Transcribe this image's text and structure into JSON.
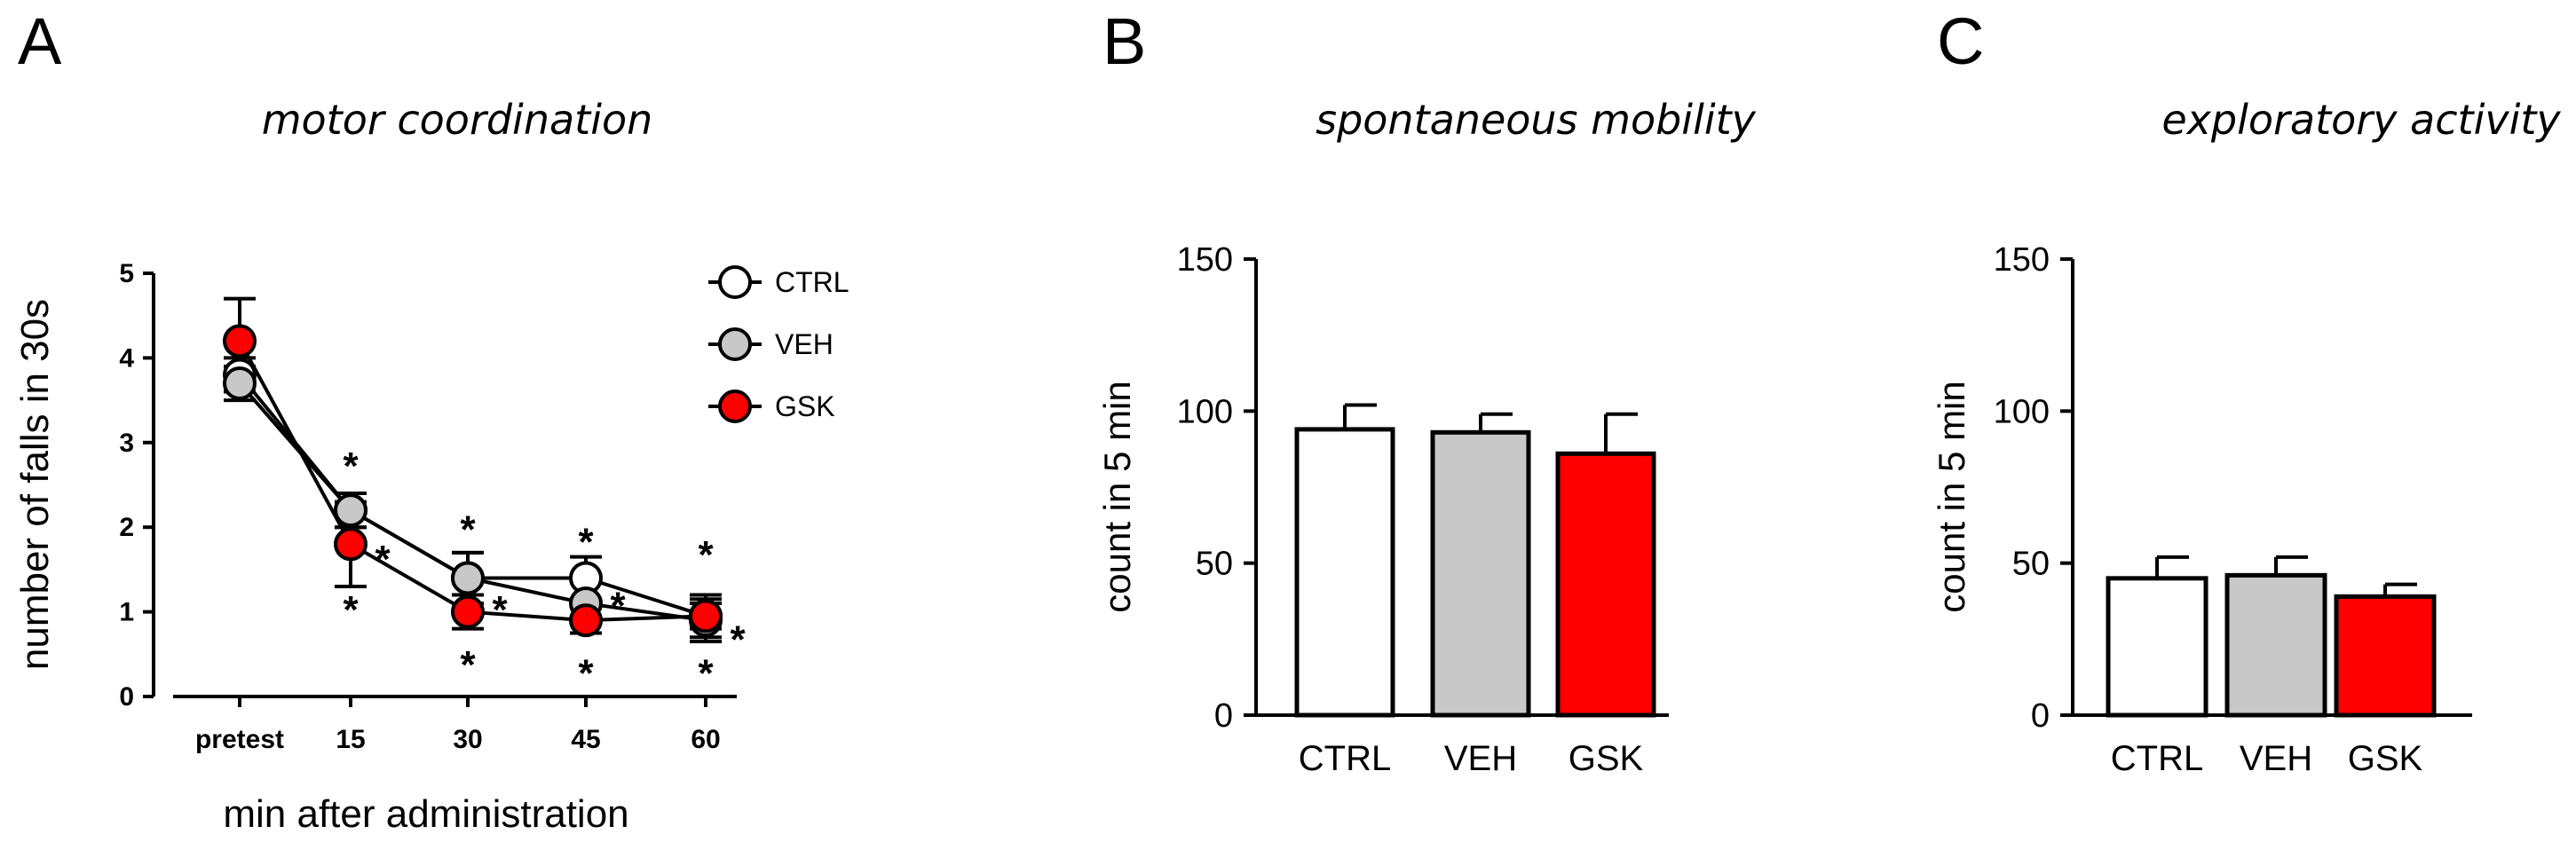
{
  "figure": {
    "panels": [
      {
        "letter": "A",
        "title": "motor coordination"
      },
      {
        "letter": "B",
        "title": "spontaneous mobility"
      },
      {
        "letter": "C",
        "title": "exploratory activity"
      }
    ]
  },
  "colors": {
    "ctrl": "#ffffff",
    "veh": "#c8c8c8",
    "gsk": "#ff0000",
    "stroke": "#000000"
  },
  "chart_data": [
    {
      "type": "line",
      "title": "motor coordination",
      "xlabel": "min after administration",
      "ylabel": "number of falls in 30s",
      "categories": [
        "pretest",
        "15",
        "30",
        "45",
        "60"
      ],
      "ylim": [
        0,
        5
      ],
      "yticks": [
        0,
        1,
        2,
        3,
        4,
        5
      ],
      "legend_position": "top-right",
      "series": [
        {
          "name": "CTRL",
          "color": "#ffffff",
          "values": [
            3.8,
            2.2,
            1.4,
            1.4,
            0.95
          ],
          "errors": [
            0.2,
            0.2,
            0.3,
            0.25,
            0.25
          ]
        },
        {
          "name": "VEH",
          "color": "#c8c8c8",
          "values": [
            3.7,
            2.2,
            1.4,
            1.1,
            0.9
          ],
          "errors": [
            0.2,
            0.2,
            0.3,
            0.25,
            0.25
          ]
        },
        {
          "name": "GSK",
          "color": "#ff0000",
          "values": [
            4.2,
            1.8,
            1.0,
            0.9,
            0.95
          ],
          "errors": [
            0.5,
            0.5,
            0.2,
            0.15,
            0.15
          ]
        }
      ],
      "annotations": [
        {
          "text": "*",
          "category": "15",
          "value": 2.8
        },
        {
          "text": "*",
          "category": "15",
          "value": 1.1
        },
        {
          "text": "*",
          "category": "15",
          "value": 1.7,
          "offset": "right"
        },
        {
          "text": "*",
          "category": "30",
          "value": 2.05
        },
        {
          "text": "*",
          "category": "30",
          "value": 0.45
        },
        {
          "text": "*",
          "category": "30",
          "value": 1.1,
          "offset": "right"
        },
        {
          "text": "*",
          "category": "45",
          "value": 1.9
        },
        {
          "text": "*",
          "category": "45",
          "value": 0.35
        },
        {
          "text": "*",
          "category": "45",
          "value": 1.15,
          "offset": "right"
        },
        {
          "text": "*",
          "category": "60",
          "value": 1.75
        },
        {
          "text": "*",
          "category": "60",
          "value": 0.35
        },
        {
          "text": "*",
          "category": "60",
          "value": 0.75,
          "offset": "right"
        }
      ]
    },
    {
      "type": "bar",
      "title": "spontaneous mobility",
      "ylabel": "count in 5 min",
      "xlabel": "",
      "categories": [
        "CTRL",
        "VEH",
        "GSK"
      ],
      "values": [
        94,
        93,
        86
      ],
      "errors": [
        8,
        6,
        13
      ],
      "colors": [
        "#ffffff",
        "#c8c8c8",
        "#ff0000"
      ],
      "ylim": [
        0,
        150
      ],
      "yticks": [
        0,
        50,
        100,
        150
      ]
    },
    {
      "type": "bar",
      "title": "exploratory activity",
      "ylabel": "count in 5 min",
      "xlabel": "",
      "categories": [
        "CTRL",
        "VEH",
        "GSK"
      ],
      "values": [
        45,
        46,
        39
      ],
      "errors": [
        7,
        6,
        4
      ],
      "colors": [
        "#ffffff",
        "#c8c8c8",
        "#ff0000"
      ],
      "ylim": [
        0,
        150
      ],
      "yticks": [
        0,
        50,
        100,
        150
      ]
    }
  ]
}
